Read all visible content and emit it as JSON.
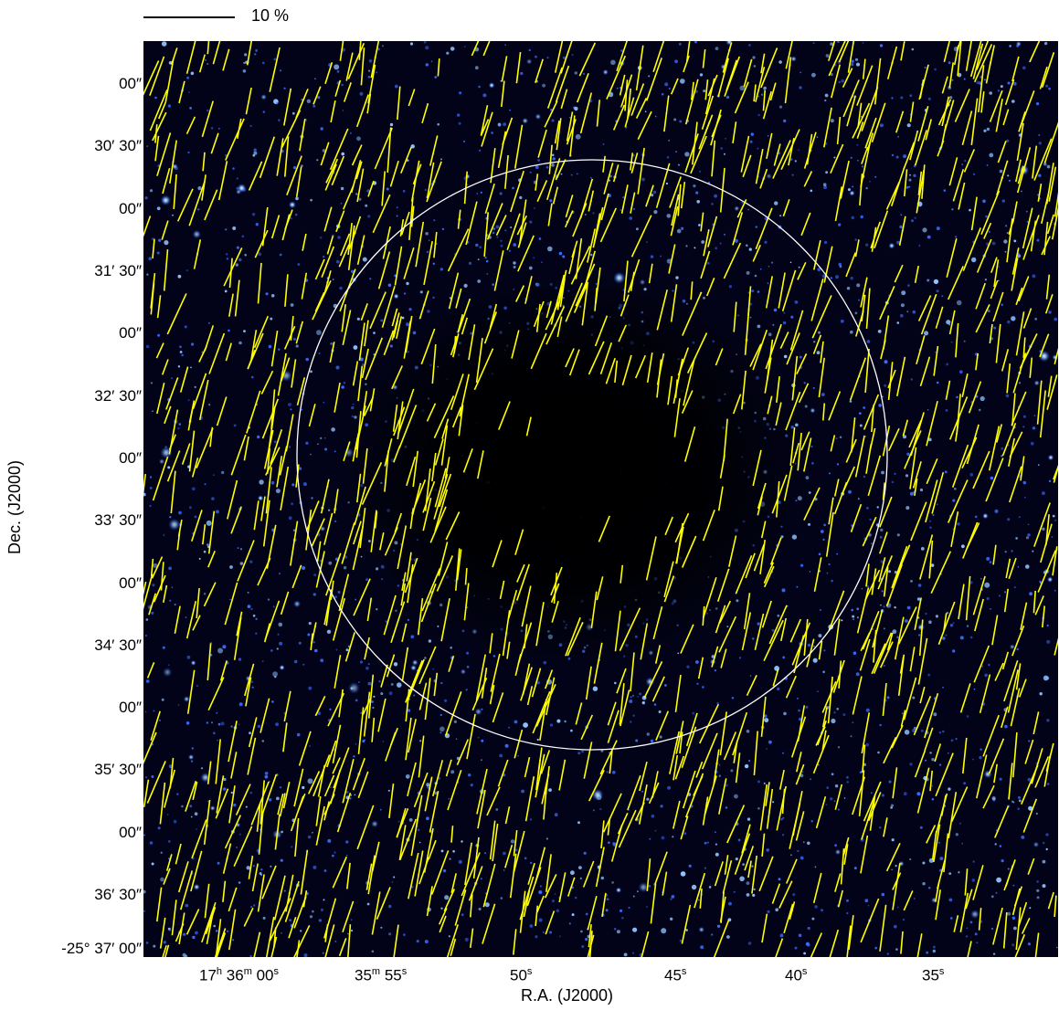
{
  "scale_bar": {
    "label": "10 %"
  },
  "axes": {
    "y_label": "Dec. (J2000)",
    "x_label": "R.A. (J2000)",
    "y_ticks": [
      "00″",
      "30′ 30″",
      "00″",
      "31′ 30″",
      "00″",
      "32′ 30″",
      "00″",
      "33′ 30″",
      "00″",
      "34′ 30″",
      "00″",
      "35′ 30″",
      "00″",
      "36′ 30″",
      "-25° 37′ 00″"
    ],
    "x_ticks": [
      {
        "main": "17",
        "s1": "h",
        "mid": " 36",
        "s2": "m",
        "mid2": " 00",
        "s3": "s"
      },
      {
        "main": "35",
        "s1": "m",
        "mid": " 55",
        "s2": "s",
        "mid2": "",
        "s3": ""
      },
      {
        "main": "50",
        "s1": "s",
        "mid": "",
        "s2": "",
        "mid2": "",
        "s3": ""
      },
      {
        "main": "45",
        "s1": "s",
        "mid": "",
        "s2": "",
        "mid2": "",
        "s3": ""
      },
      {
        "main": "40",
        "s1": "s",
        "mid": "",
        "s2": "",
        "mid2": "",
        "s3": ""
      },
      {
        "main": "35",
        "s1": "s",
        "mid": "",
        "s2": "",
        "mid2": "",
        "s3": ""
      }
    ]
  },
  "colors": {
    "sky_background": "#020319",
    "star": "#9fd4ff",
    "vector": "#ffff00",
    "circle": "#ffffff"
  }
}
